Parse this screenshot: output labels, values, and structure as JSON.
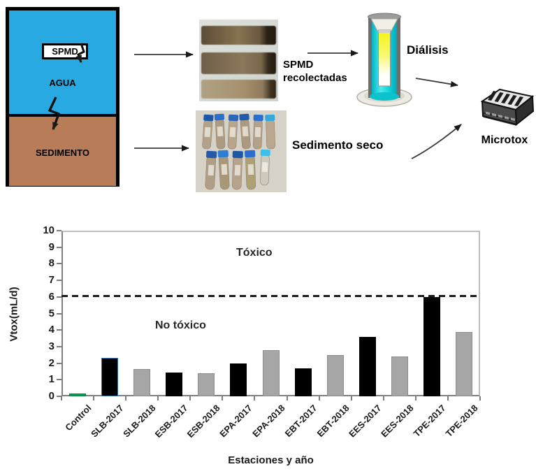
{
  "diagram": {
    "tank": {
      "spmd": "SPMD",
      "agua": "AGUA",
      "sedimento": "SEDIMENTO",
      "water_color": "#29A9E1",
      "sediment_color": "#B97C58"
    },
    "spmd_photo_label": "SPMD\nrecolectadas",
    "sediment_photo_label": "Sedimento seco",
    "dialysis_label": "Diálisis",
    "microtox_label": "Microtox"
  },
  "chart_data": {
    "type": "bar",
    "title": "",
    "xlabel": "Estaciones y año",
    "ylabel": "Vtox(mL/d)",
    "ylim": [
      0,
      10
    ],
    "ytick_step": 1,
    "grid": false,
    "categories": [
      "Control",
      "SLB-2017",
      "SLB-2018",
      "ESB-2017",
      "ESB-2018",
      "EPA-2017",
      "EPA-2018",
      "EBT-2017",
      "EBT-2018",
      "EES-2017",
      "EES-2018",
      "TPE-2017",
      "TPE-2018"
    ],
    "values": [
      0.15,
      2.3,
      1.65,
      1.45,
      1.4,
      2.0,
      2.8,
      1.7,
      2.5,
      3.6,
      2.4,
      6.0,
      3.9
    ],
    "bar_colors": [
      "#00A651",
      "#000000",
      "#A6A6A6",
      "#000000",
      "#A6A6A6",
      "#000000",
      "#A6A6A6",
      "#000000",
      "#A6A6A6",
      "#000000",
      "#A6A6A6",
      "#000000",
      "#A6A6A6"
    ],
    "bar_borders": [
      "#007A3D",
      "#2E75B6",
      "#8C8C8C",
      "#000000",
      "#8C8C8C",
      "#000000",
      "#8C8C8C",
      "#000000",
      "#8C8C8C",
      "#000000",
      "#8C8C8C",
      "#000000",
      "#8C8C8C"
    ],
    "threshold": {
      "value": 6.05,
      "style": "dashed",
      "color": "#1a1a1a"
    },
    "annotations": [
      {
        "text": "Tóxico"
      },
      {
        "text": "No tóxico"
      }
    ]
  }
}
